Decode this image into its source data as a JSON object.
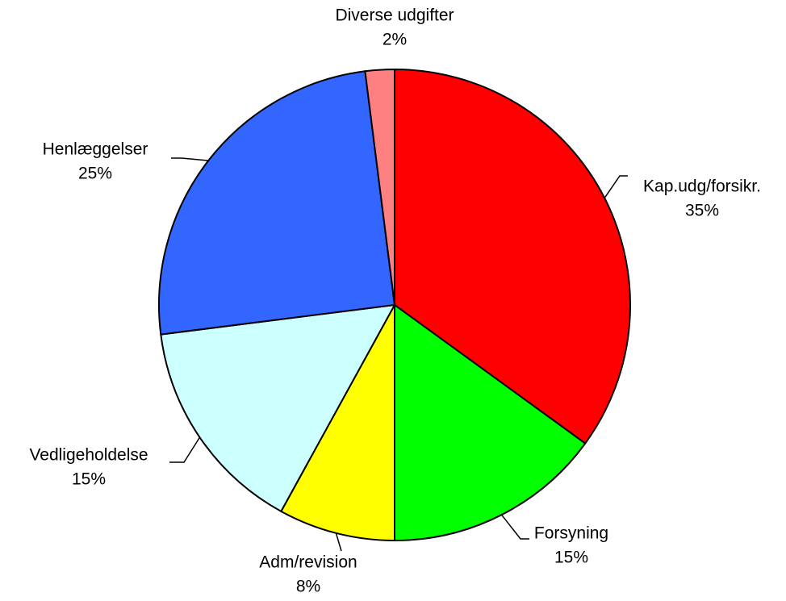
{
  "chart_data": {
    "type": "pie",
    "categories": [
      "Kap.udg/forsikr.",
      "Forsyning",
      "Adm/revision",
      "Vedligeholdelse",
      "Henlæggelser",
      "Diverse udgifter"
    ],
    "values": [
      35,
      15,
      8,
      15,
      25,
      2
    ],
    "value_labels": [
      "35%",
      "15%",
      "8%",
      "15%",
      "25%",
      "2%"
    ],
    "colors": [
      "#ff0000",
      "#00ff00",
      "#ffff00",
      "#ccffff",
      "#3366ff",
      "#ff8080"
    ]
  }
}
